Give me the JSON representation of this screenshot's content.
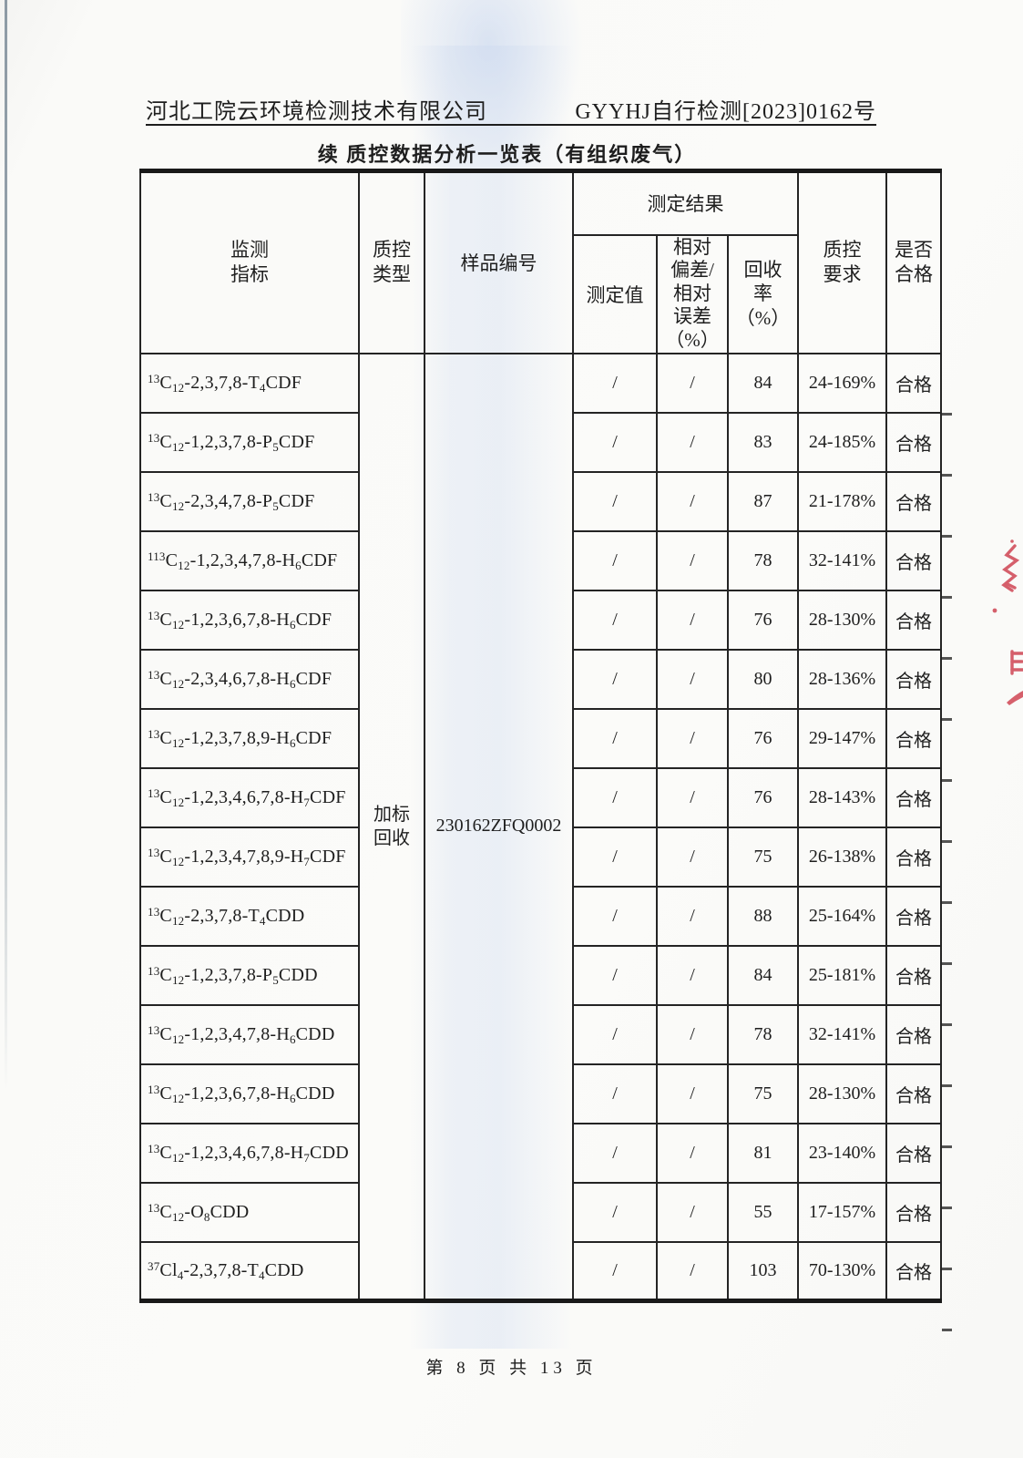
{
  "header": {
    "company": "河北工院云环境检测技术有限公司",
    "doc_number": "GYYHJ自行检测[2023]0162号"
  },
  "title": "续 质控数据分析一览表（有组织废气）",
  "footer": "第 8 页 共 13 页",
  "table": {
    "headers": {
      "indicator": "监测\n指标",
      "qc_type": "质控\n类型",
      "sample_id": "样品编号",
      "result_group": "测定结果",
      "measured": "测定值",
      "deviation": "相对\n偏差/\n相对\n误差\n（%）",
      "recovery": "回收\n率\n（%）",
      "requirement": "质控\n要求",
      "qualified": "是否\n合格"
    },
    "qc_type_value": "加标\n回收",
    "sample_id_value": "230162ZFQ0002",
    "rows": [
      {
        "indicator": "^{13}C_{12}-2,3,7,8-T_{4}CDF",
        "measured": "/",
        "deviation": "/",
        "recovery": "84",
        "requirement": "24-169%",
        "qualified": "合格"
      },
      {
        "indicator": "^{13}C_{12}-1,2,3,7,8-P_{5}CDF",
        "measured": "/",
        "deviation": "/",
        "recovery": "83",
        "requirement": "24-185%",
        "qualified": "合格"
      },
      {
        "indicator": "^{13}C_{12}-2,3,4,7,8-P_{5}CDF",
        "measured": "/",
        "deviation": "/",
        "recovery": "87",
        "requirement": "21-178%",
        "qualified": "合格"
      },
      {
        "indicator": "^{113}C_{12}-1,2,3,4,7,8-H_{6}CDF",
        "measured": "/",
        "deviation": "/",
        "recovery": "78",
        "requirement": "32-141%",
        "qualified": "合格"
      },
      {
        "indicator": "^{13}C_{12}-1,2,3,6,7,8-H_{6}CDF",
        "measured": "/",
        "deviation": "/",
        "recovery": "76",
        "requirement": "28-130%",
        "qualified": "合格"
      },
      {
        "indicator": "^{13}C_{12}-2,3,4,6,7,8-H_{6}CDF",
        "measured": "/",
        "deviation": "/",
        "recovery": "80",
        "requirement": "28-136%",
        "qualified": "合格"
      },
      {
        "indicator": "^{13}C_{12}-1,2,3,7,8,9-H_{6}CDF",
        "measured": "/",
        "deviation": "/",
        "recovery": "76",
        "requirement": "29-147%",
        "qualified": "合格"
      },
      {
        "indicator": "^{13}C_{12}-1,2,3,4,6,7,8-H_{7}CDF",
        "measured": "/",
        "deviation": "/",
        "recovery": "76",
        "requirement": "28-143%",
        "qualified": "合格"
      },
      {
        "indicator": "^{13}C_{12}-1,2,3,4,7,8,9-H_{7}CDF",
        "measured": "/",
        "deviation": "/",
        "recovery": "75",
        "requirement": "26-138%",
        "qualified": "合格"
      },
      {
        "indicator": "^{13}C_{12}-2,3,7,8-T_{4}CDD",
        "measured": "/",
        "deviation": "/",
        "recovery": "88",
        "requirement": "25-164%",
        "qualified": "合格"
      },
      {
        "indicator": "^{13}C_{12}-1,2,3,7,8-P_{5}CDD",
        "measured": "/",
        "deviation": "/",
        "recovery": "84",
        "requirement": "25-181%",
        "qualified": "合格"
      },
      {
        "indicator": "^{13}C_{12}-1,2,3,4,7,8-H_{6}CDD",
        "measured": "/",
        "deviation": "/",
        "recovery": "78",
        "requirement": "32-141%",
        "qualified": "合格"
      },
      {
        "indicator": "^{13}C_{12}-1,2,3,6,7,8-H_{6}CDD",
        "measured": "/",
        "deviation": "/",
        "recovery": "75",
        "requirement": "28-130%",
        "qualified": "合格"
      },
      {
        "indicator": "^{13}C_{12}-1,2,3,4,6,7,8-H_{7}CDD",
        "measured": "/",
        "deviation": "/",
        "recovery": "81",
        "requirement": "23-140%",
        "qualified": "合格"
      },
      {
        "indicator": "^{13}C_{12}-O_{8}CDD",
        "measured": "/",
        "deviation": "/",
        "recovery": "55",
        "requirement": "17-157%",
        "qualified": "合格"
      },
      {
        "indicator": "^{37}Cl_{4}-2,3,7,8-T_{4}CDD",
        "measured": "/",
        "deviation": "/",
        "recovery": "103",
        "requirement": "70-130%",
        "qualified": "合格"
      }
    ]
  }
}
